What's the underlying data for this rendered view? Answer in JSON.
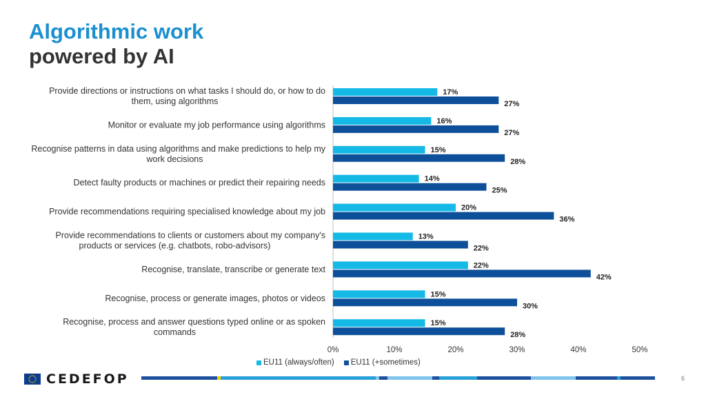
{
  "title": {
    "line1": "Algorithmic work",
    "line2": "powered by AI"
  },
  "chart_data": {
    "type": "bar",
    "orientation": "horizontal",
    "categories": [
      [
        "Provide directions or instructions on what tasks I should do, or how to do",
        "them, using algorithms"
      ],
      [
        "Monitor or evaluate my job performance using algorithms"
      ],
      [
        "Recognise patterns in data using algorithms and make predictions to help my",
        "work decisions"
      ],
      [
        "Detect faulty products or machines or predict their repairing needs"
      ],
      [
        "Provide recommendations requiring specialised knowledge about my job"
      ],
      [
        "Provide recommendations to clients or customers about my company's",
        "products or services (e.g. chatbots, robo-advisors)"
      ],
      [
        "Recognise, translate, transcribe or generate text"
      ],
      [
        "Recognise, process or generate images, photos or videos"
      ],
      [
        "Recognise, process and answer questions typed online or as spoken",
        "commands"
      ]
    ],
    "series": [
      {
        "name": "EU11 (always/often)",
        "color": "#14b9e6",
        "values": [
          17,
          16,
          15,
          14,
          20,
          13,
          22,
          15,
          15
        ]
      },
      {
        "name": "EU11 (+sometimes)",
        "color": "#0e4f9a",
        "values": [
          27,
          27,
          28,
          25,
          36,
          22,
          42,
          30,
          28
        ]
      }
    ],
    "value_suffix": "%",
    "xlim": [
      0,
      50
    ],
    "xticks": [
      "0%",
      "10%",
      "20%",
      "30%",
      "40%",
      "50%"
    ],
    "legend_position": "bottom",
    "grid": false
  },
  "footer": {
    "logo_text": "CEDEFOP",
    "page_number": "6",
    "strip_colors": [
      "#1e4f9c",
      "#f5d000",
      "#27a0d8",
      "#7fc4ea",
      "#1e4f9c",
      "#7fc4ea",
      "#1e4f9c",
      "#27a0d8",
      "#1e4f9c",
      "#7fc4ea",
      "#1e4f9c",
      "#27a0d8",
      "#1e4f9c"
    ]
  }
}
